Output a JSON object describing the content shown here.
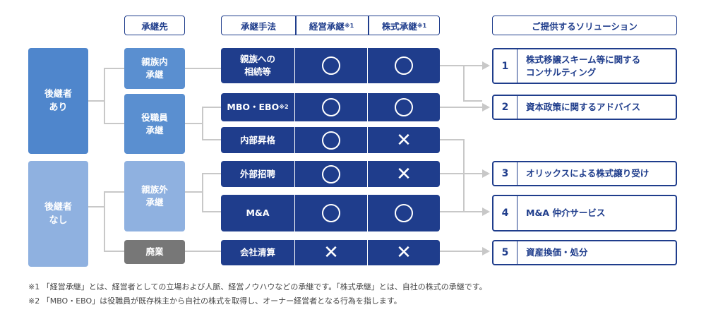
{
  "headers": {
    "successor": "承継先",
    "method": "承継手法",
    "management": "経営承継",
    "management_sup": "※1",
    "stock": "株式承継",
    "stock_sup": "※1",
    "solutions": "ご提供するソリューション"
  },
  "successor_groups": [
    {
      "label_line1": "後継者",
      "label_line2": "あり"
    },
    {
      "label_line1": "後継者",
      "label_line2": "なし"
    }
  ],
  "destinations": [
    {
      "line1": "親族内",
      "line2": "承継"
    },
    {
      "line1": "役職員",
      "line2": "承継"
    },
    {
      "line1": "親族外",
      "line2": "承継"
    },
    {
      "line1": "廃業",
      "line2": ""
    }
  ],
  "methods": [
    {
      "line1": "親族への",
      "line2": "相続等",
      "sup": "",
      "management": "circle",
      "stock": "circle"
    },
    {
      "line1": "MBO・EBO",
      "line2": "",
      "sup": "※2",
      "management": "circle",
      "stock": "circle"
    },
    {
      "line1": "内部昇格",
      "line2": "",
      "sup": "",
      "management": "circle",
      "stock": "cross"
    },
    {
      "line1": "外部招聘",
      "line2": "",
      "sup": "",
      "management": "circle",
      "stock": "cross"
    },
    {
      "line1": "M&A",
      "line2": "",
      "sup": "",
      "management": "circle",
      "stock": "circle"
    },
    {
      "line1": "会社清算",
      "line2": "",
      "sup": "",
      "management": "cross",
      "stock": "cross"
    }
  ],
  "solutions": [
    {
      "num": "1",
      "line1": "株式移譲スキーム等に関する",
      "line2": "コンサルティング"
    },
    {
      "num": "2",
      "line1": "資本政策に関するアドバイス",
      "line2": ""
    },
    {
      "num": "3",
      "line1": "オリックスによる株式譲り受け",
      "line2": ""
    },
    {
      "num": "4",
      "line1": "M&A 仲介サービス",
      "line2": ""
    },
    {
      "num": "5",
      "line1": "資産換価・処分",
      "line2": ""
    }
  ],
  "notes": [
    "※1 「経営承継」とは、経営者としての立場および人脈、経営ノウハウなどの承継です。「株式承継」とは、自社の株式の承継です。",
    "※2 「MBO・EBO」は役職員が既存株主から自社の株式を取得し、オーナー経営者となる行為を指します。"
  ],
  "colors": {
    "navy": "#1f3d8c",
    "blue": "#4f86cc",
    "light_blue": "#8fb1e0",
    "gray": "#777777",
    "connector": "#c8c8c8"
  }
}
